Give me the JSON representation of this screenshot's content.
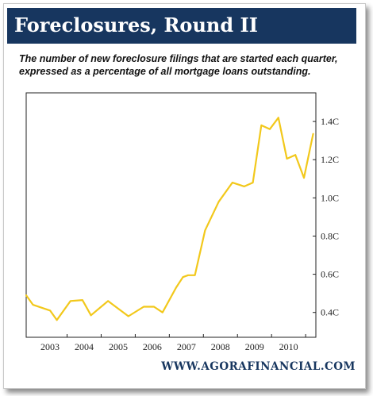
{
  "title": "Foreclosures, Round II",
  "subtitle": "The number of new foreclosure filings that are started each quarter, expressed as a percentage of all mortgage loans outstanding.",
  "footer": "WWW.AGORAFINANCIAL.COM",
  "colors": {
    "title_bar": "#17365f",
    "line": "#f2c81b",
    "footer": "#17365f"
  },
  "chart_data": {
    "type": "line",
    "x_tick_labels": [
      "2003",
      "2004",
      "2005",
      "2006",
      "2007",
      "2008",
      "2009",
      "2010"
    ],
    "y_tick_labels": [
      "0.4C",
      "0.6C",
      "0.8C",
      "1.0C",
      "1.2C",
      "1.4C"
    ],
    "y_ticks": [
      0.4,
      0.6,
      0.8,
      1.0,
      1.2,
      1.4
    ],
    "ylim": [
      0.27,
      1.55
    ],
    "xlim": [
      2002.3,
      2010.8
    ],
    "grid": false,
    "series": [
      {
        "points": [
          [
            2002.3,
            0.49
          ],
          [
            2002.5,
            0.44
          ],
          [
            2002.75,
            0.425
          ],
          [
            2003.0,
            0.41
          ],
          [
            2003.2,
            0.36
          ],
          [
            2003.6,
            0.46
          ],
          [
            2003.95,
            0.465
          ],
          [
            2004.2,
            0.385
          ],
          [
            2004.7,
            0.46
          ],
          [
            2005.3,
            0.38
          ],
          [
            2005.75,
            0.43
          ],
          [
            2006.05,
            0.43
          ],
          [
            2006.3,
            0.4
          ],
          [
            2006.7,
            0.53
          ],
          [
            2006.9,
            0.585
          ],
          [
            2007.05,
            0.595
          ],
          [
            2007.25,
            0.595
          ],
          [
            2007.55,
            0.83
          ],
          [
            2007.95,
            0.98
          ],
          [
            2008.35,
            1.08
          ],
          [
            2008.7,
            1.06
          ],
          [
            2008.95,
            1.08
          ],
          [
            2009.2,
            1.38
          ],
          [
            2009.45,
            1.36
          ],
          [
            2009.7,
            1.42
          ],
          [
            2009.95,
            1.205
          ],
          [
            2010.2,
            1.225
          ],
          [
            2010.45,
            1.105
          ],
          [
            2010.72,
            1.335
          ]
        ]
      }
    ]
  }
}
